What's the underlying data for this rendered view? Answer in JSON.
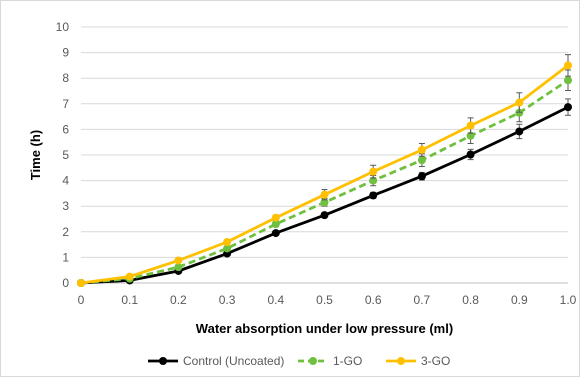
{
  "chart_data": {
    "type": "line",
    "title": "",
    "xlabel": "Water absorption under low pressure (ml)",
    "ylabel": "Time (h)",
    "xlim": [
      0,
      1.0
    ],
    "ylim": [
      0,
      10
    ],
    "x_ticks": [
      "0",
      "0.1",
      "0.2",
      "0.3",
      "0.4",
      "0.5",
      "0.6",
      "0.7",
      "0.8",
      "0.9",
      "1.0"
    ],
    "y_ticks": [
      "0",
      "1",
      "2",
      "3",
      "4",
      "5",
      "6",
      "7",
      "8",
      "9",
      "10"
    ],
    "grid": "horizontal",
    "legend_position": "bottom",
    "x": [
      0,
      0.1,
      0.2,
      0.3,
      0.4,
      0.5,
      0.6,
      0.7,
      0.8,
      0.9,
      1.0
    ],
    "series": [
      {
        "name": "Control (Uncoated)",
        "color": "#000000",
        "dash": "solid",
        "values": [
          0,
          0.1,
          0.47,
          1.15,
          1.95,
          2.65,
          3.42,
          4.17,
          5.02,
          5.92,
          6.87
        ],
        "errors": [
          0,
          0.03,
          0.05,
          0.07,
          0.08,
          0.1,
          0.12,
          0.15,
          0.2,
          0.28,
          0.32
        ]
      },
      {
        "name": "1-GO",
        "color": "#70c040",
        "dash": "dashed",
        "values": [
          0,
          0.17,
          0.62,
          1.35,
          2.3,
          3.15,
          4.0,
          4.8,
          5.75,
          6.65,
          7.92
        ],
        "errors": [
          0,
          0.03,
          0.06,
          0.08,
          0.1,
          0.15,
          0.2,
          0.25,
          0.3,
          0.35,
          0.4
        ]
      },
      {
        "name": "3-GO",
        "color": "#ffc000",
        "dash": "solid",
        "values": [
          0,
          0.25,
          0.88,
          1.6,
          2.55,
          3.45,
          4.35,
          5.2,
          6.15,
          7.05,
          8.5
        ],
        "errors": [
          0,
          0.03,
          0.06,
          0.08,
          0.1,
          0.2,
          0.25,
          0.25,
          0.3,
          0.38,
          0.42
        ]
      }
    ]
  }
}
